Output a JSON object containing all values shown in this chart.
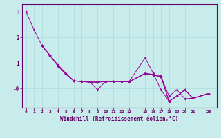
{
  "background_color": "#c8ecec",
  "grid_color": "#aadddd",
  "line_color": "#990099",
  "spine_color": "#660066",
  "tick_label_color": "#660066",
  "xlabel": "Windchill (Refroidissement éolien,°C)",
  "lines": [
    {
      "x": [
        0,
        1,
        2,
        3,
        4,
        5,
        6,
        7,
        8,
        9,
        10,
        11,
        12,
        13,
        15,
        16,
        17,
        18,
        19,
        20,
        21,
        23
      ],
      "y": [
        3.0,
        2.3,
        1.67,
        1.28,
        0.93,
        0.6,
        0.3,
        0.28,
        0.27,
        -0.05,
        0.28,
        0.28,
        0.28,
        0.28,
        1.2,
        0.6,
        -0.05,
        -0.5,
        -0.3,
        -0.05,
        -0.38,
        -0.2
      ]
    },
    {
      "x": [
        2,
        3,
        4,
        5,
        6,
        7,
        8,
        9,
        10,
        11,
        12,
        13,
        15,
        16,
        17,
        18,
        19,
        20,
        21,
        23
      ],
      "y": [
        1.67,
        1.3,
        0.9,
        0.58,
        0.3,
        0.27,
        0.25,
        0.25,
        0.27,
        0.27,
        0.27,
        0.27,
        0.6,
        0.55,
        0.5,
        -0.5,
        -0.3,
        -0.05,
        -0.38,
        -0.2
      ]
    },
    {
      "x": [
        2,
        3,
        4,
        5,
        6,
        7,
        8,
        9,
        10,
        11,
        12,
        13,
        15,
        16,
        17,
        18,
        19,
        20,
        21,
        23
      ],
      "y": [
        1.67,
        1.3,
        0.9,
        0.57,
        0.3,
        0.27,
        0.25,
        0.25,
        0.27,
        0.27,
        0.27,
        0.27,
        0.58,
        0.53,
        0.47,
        -0.3,
        -0.05,
        -0.4,
        -0.38,
        -0.2
      ]
    },
    {
      "x": [
        2,
        3,
        4,
        5,
        6,
        7,
        8,
        9,
        10,
        11,
        12,
        13,
        15,
        16,
        17,
        18,
        19,
        20,
        21,
        23
      ],
      "y": [
        1.67,
        1.3,
        0.88,
        0.56,
        0.3,
        0.27,
        0.25,
        0.25,
        0.27,
        0.27,
        0.27,
        0.27,
        0.58,
        0.53,
        0.45,
        -0.5,
        -0.3,
        -0.05,
        -0.38,
        -0.2
      ]
    }
  ],
  "xlim": [
    -0.5,
    24.0
  ],
  "ylim": [
    -0.75,
    3.3
  ],
  "xticks": [
    0,
    1,
    2,
    3,
    4,
    5,
    6,
    7,
    8,
    9,
    10,
    11,
    12,
    13,
    15,
    16,
    17,
    18,
    19,
    20,
    21,
    23
  ],
  "yticks": [
    0,
    1,
    2,
    3
  ],
  "ytick_labels": [
    "-0",
    "1",
    "2",
    "3"
  ]
}
